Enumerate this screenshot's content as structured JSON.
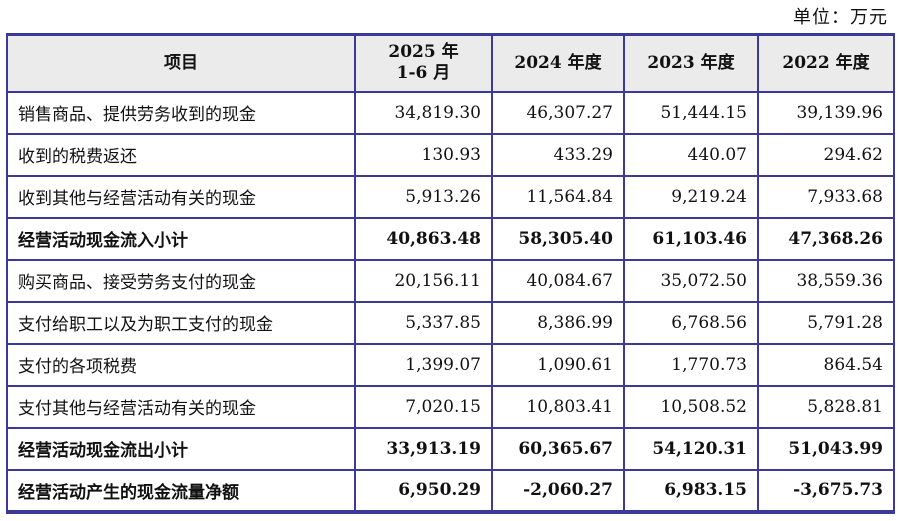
{
  "unit_label": "单位：万元",
  "colors": {
    "grid_line": "#3b3b97",
    "header_background": "#ebebeb"
  },
  "table": {
    "header": {
      "item": "项目",
      "period1_line1": "2025 年",
      "period1_line2": "1-6 月",
      "period2": "2024 年度",
      "period3": "2023 年度",
      "period4": "2022 年度"
    },
    "rows": [
      {
        "label": "销售商品、提供劳务收到的现金",
        "bold": false,
        "values": [
          "34,819.30",
          "46,307.27",
          "51,444.15",
          "39,139.96"
        ]
      },
      {
        "label": "收到的税费返还",
        "bold": false,
        "values": [
          "130.93",
          "433.29",
          "440.07",
          "294.62"
        ]
      },
      {
        "label": "收到其他与经营活动有关的现金",
        "bold": false,
        "values": [
          "5,913.26",
          "11,564.84",
          "9,219.24",
          "7,933.68"
        ]
      },
      {
        "label": "经营活动现金流入小计",
        "bold": true,
        "values": [
          "40,863.48",
          "58,305.40",
          "61,103.46",
          "47,368.26"
        ]
      },
      {
        "label": "购买商品、接受劳务支付的现金",
        "bold": false,
        "values": [
          "20,156.11",
          "40,084.67",
          "35,072.50",
          "38,559.36"
        ]
      },
      {
        "label": "支付给职工以及为职工支付的现金",
        "bold": false,
        "values": [
          "5,337.85",
          "8,386.99",
          "6,768.56",
          "5,791.28"
        ]
      },
      {
        "label": "支付的各项税费",
        "bold": false,
        "values": [
          "1,399.07",
          "1,090.61",
          "1,770.73",
          "864.54"
        ]
      },
      {
        "label": "支付其他与经营活动有关的现金",
        "bold": false,
        "values": [
          "7,020.15",
          "10,803.41",
          "10,508.52",
          "5,828.81"
        ]
      },
      {
        "label": "经营活动现金流出小计",
        "bold": true,
        "values": [
          "33,913.19",
          "60,365.67",
          "54,120.31",
          "51,043.99"
        ]
      },
      {
        "label": "经营活动产生的现金流量净额",
        "bold": true,
        "values": [
          "6,950.29",
          "-2,060.27",
          "6,983.15",
          "-3,675.73"
        ]
      }
    ]
  }
}
